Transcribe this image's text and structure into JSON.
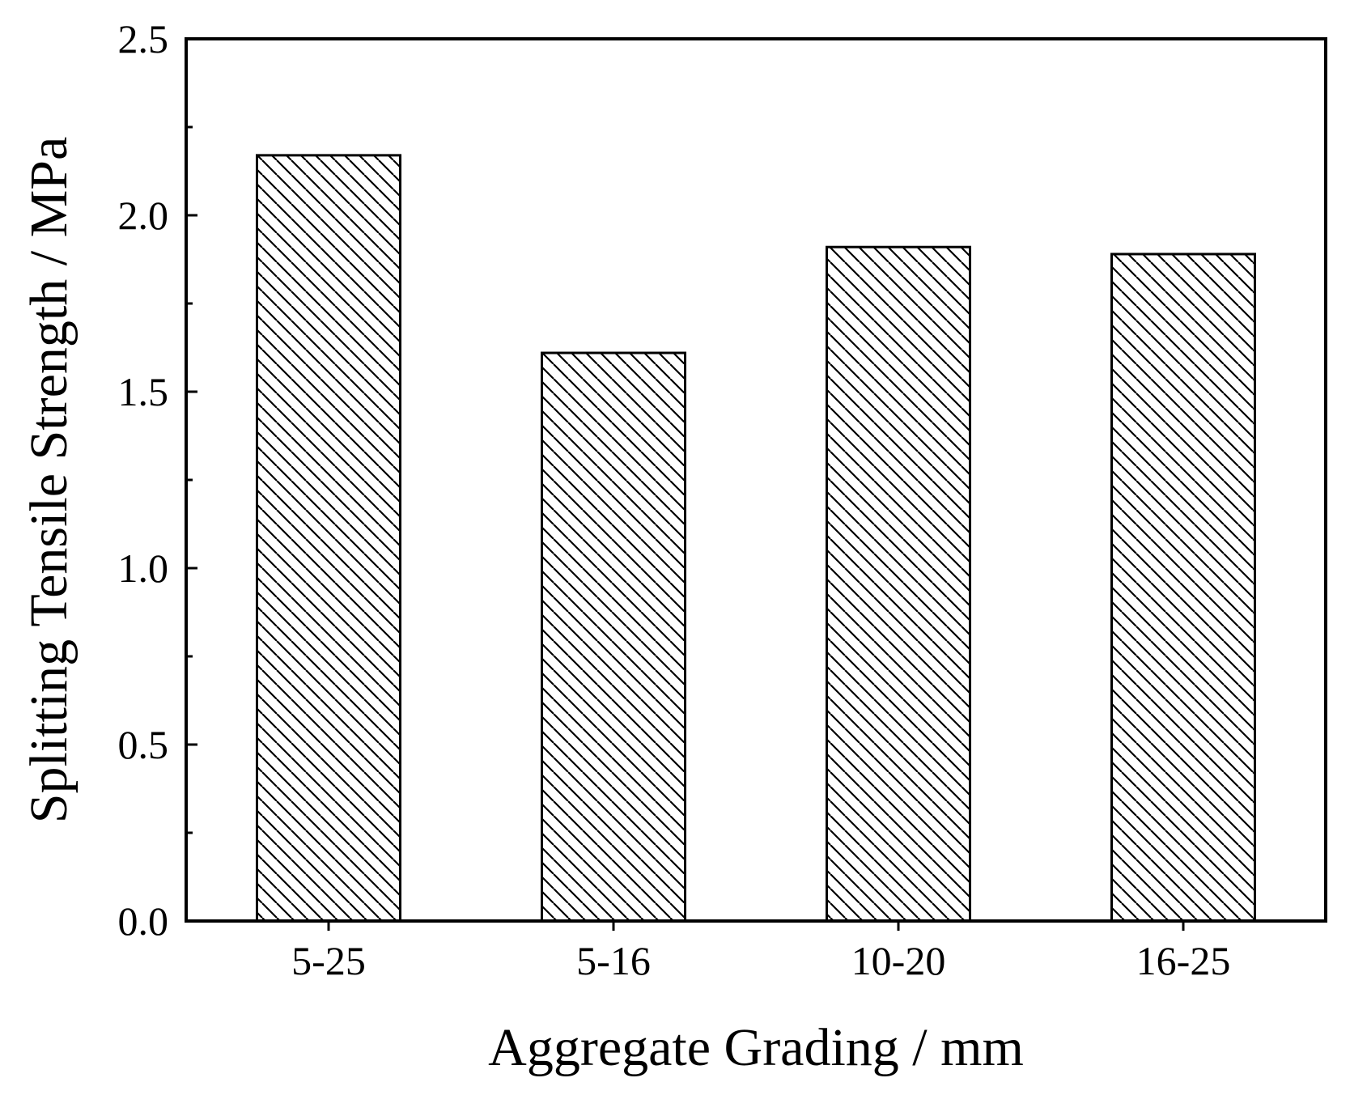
{
  "chart_data": {
    "type": "bar",
    "title": "",
    "xlabel": "Aggregate Grading / mm",
    "ylabel": "Splitting Tensile Strength / MPa",
    "categories": [
      "5-25",
      "5-16",
      "10-20",
      "16-25"
    ],
    "values": [
      2.17,
      1.61,
      1.91,
      1.89
    ],
    "ylim": [
      0,
      2.5
    ],
    "yticks": [
      "0.0",
      "0.5",
      "1.0",
      "1.5",
      "2.0",
      "2.5"
    ],
    "ytick_values": [
      0,
      0.5,
      1.0,
      1.5,
      2.0,
      2.5
    ],
    "grid": false,
    "legend": "none",
    "bar_fill": "hatched",
    "colors": {
      "bar_stroke": "#000000",
      "hatch": "#000000",
      "background": "#ffffff"
    }
  }
}
